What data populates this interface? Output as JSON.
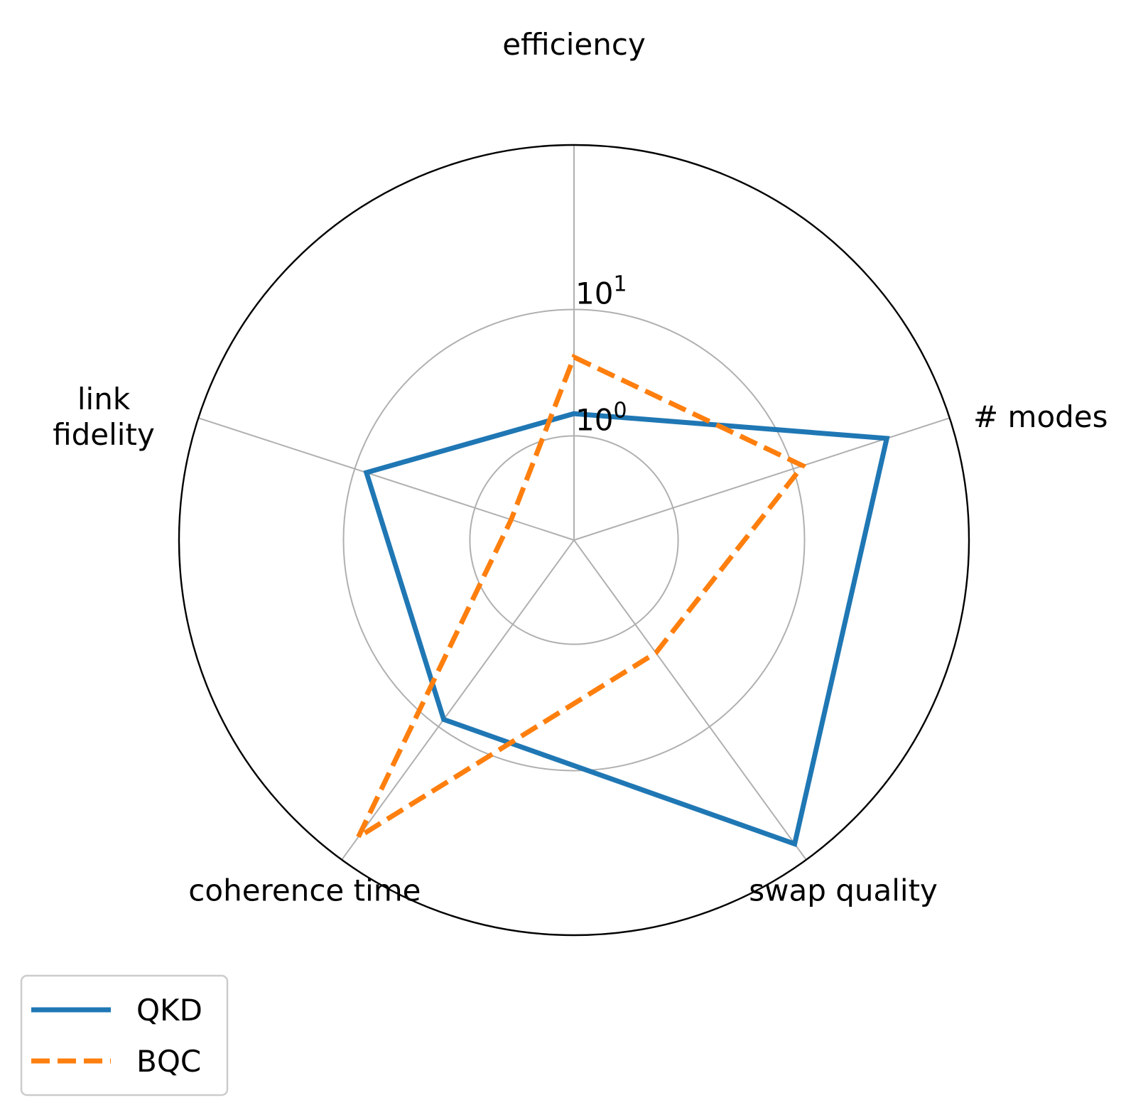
{
  "chart_data": {
    "type": "radar",
    "radial_scale": "log",
    "rlim": [
      0.15,
      200
    ],
    "radial_ticks": [
      {
        "value": 1,
        "base": "10",
        "exponent": "0"
      },
      {
        "value": 10,
        "base": "10",
        "exponent": "1"
      }
    ],
    "categories": [
      "efficiency",
      "# modes",
      "swap quality",
      "coherence time",
      "link fidelity"
    ],
    "category_lines": [
      [
        "efficiency"
      ],
      [
        "# modes"
      ],
      [
        "swap quality"
      ],
      [
        "coherence time"
      ],
      [
        "link",
        "fidelity"
      ]
    ],
    "series": [
      {
        "name": "QKD",
        "values": [
          1.5,
          60,
          140,
          8.5,
          8
        ],
        "color": "#1f77b4",
        "style": "solid"
      },
      {
        "name": "BQC",
        "values": [
          4.2,
          12,
          1.9,
          120,
          0.5
        ],
        "color": "#ff7f0e",
        "style": "dashed"
      }
    ],
    "grid": true,
    "legend": "lower-left"
  }
}
